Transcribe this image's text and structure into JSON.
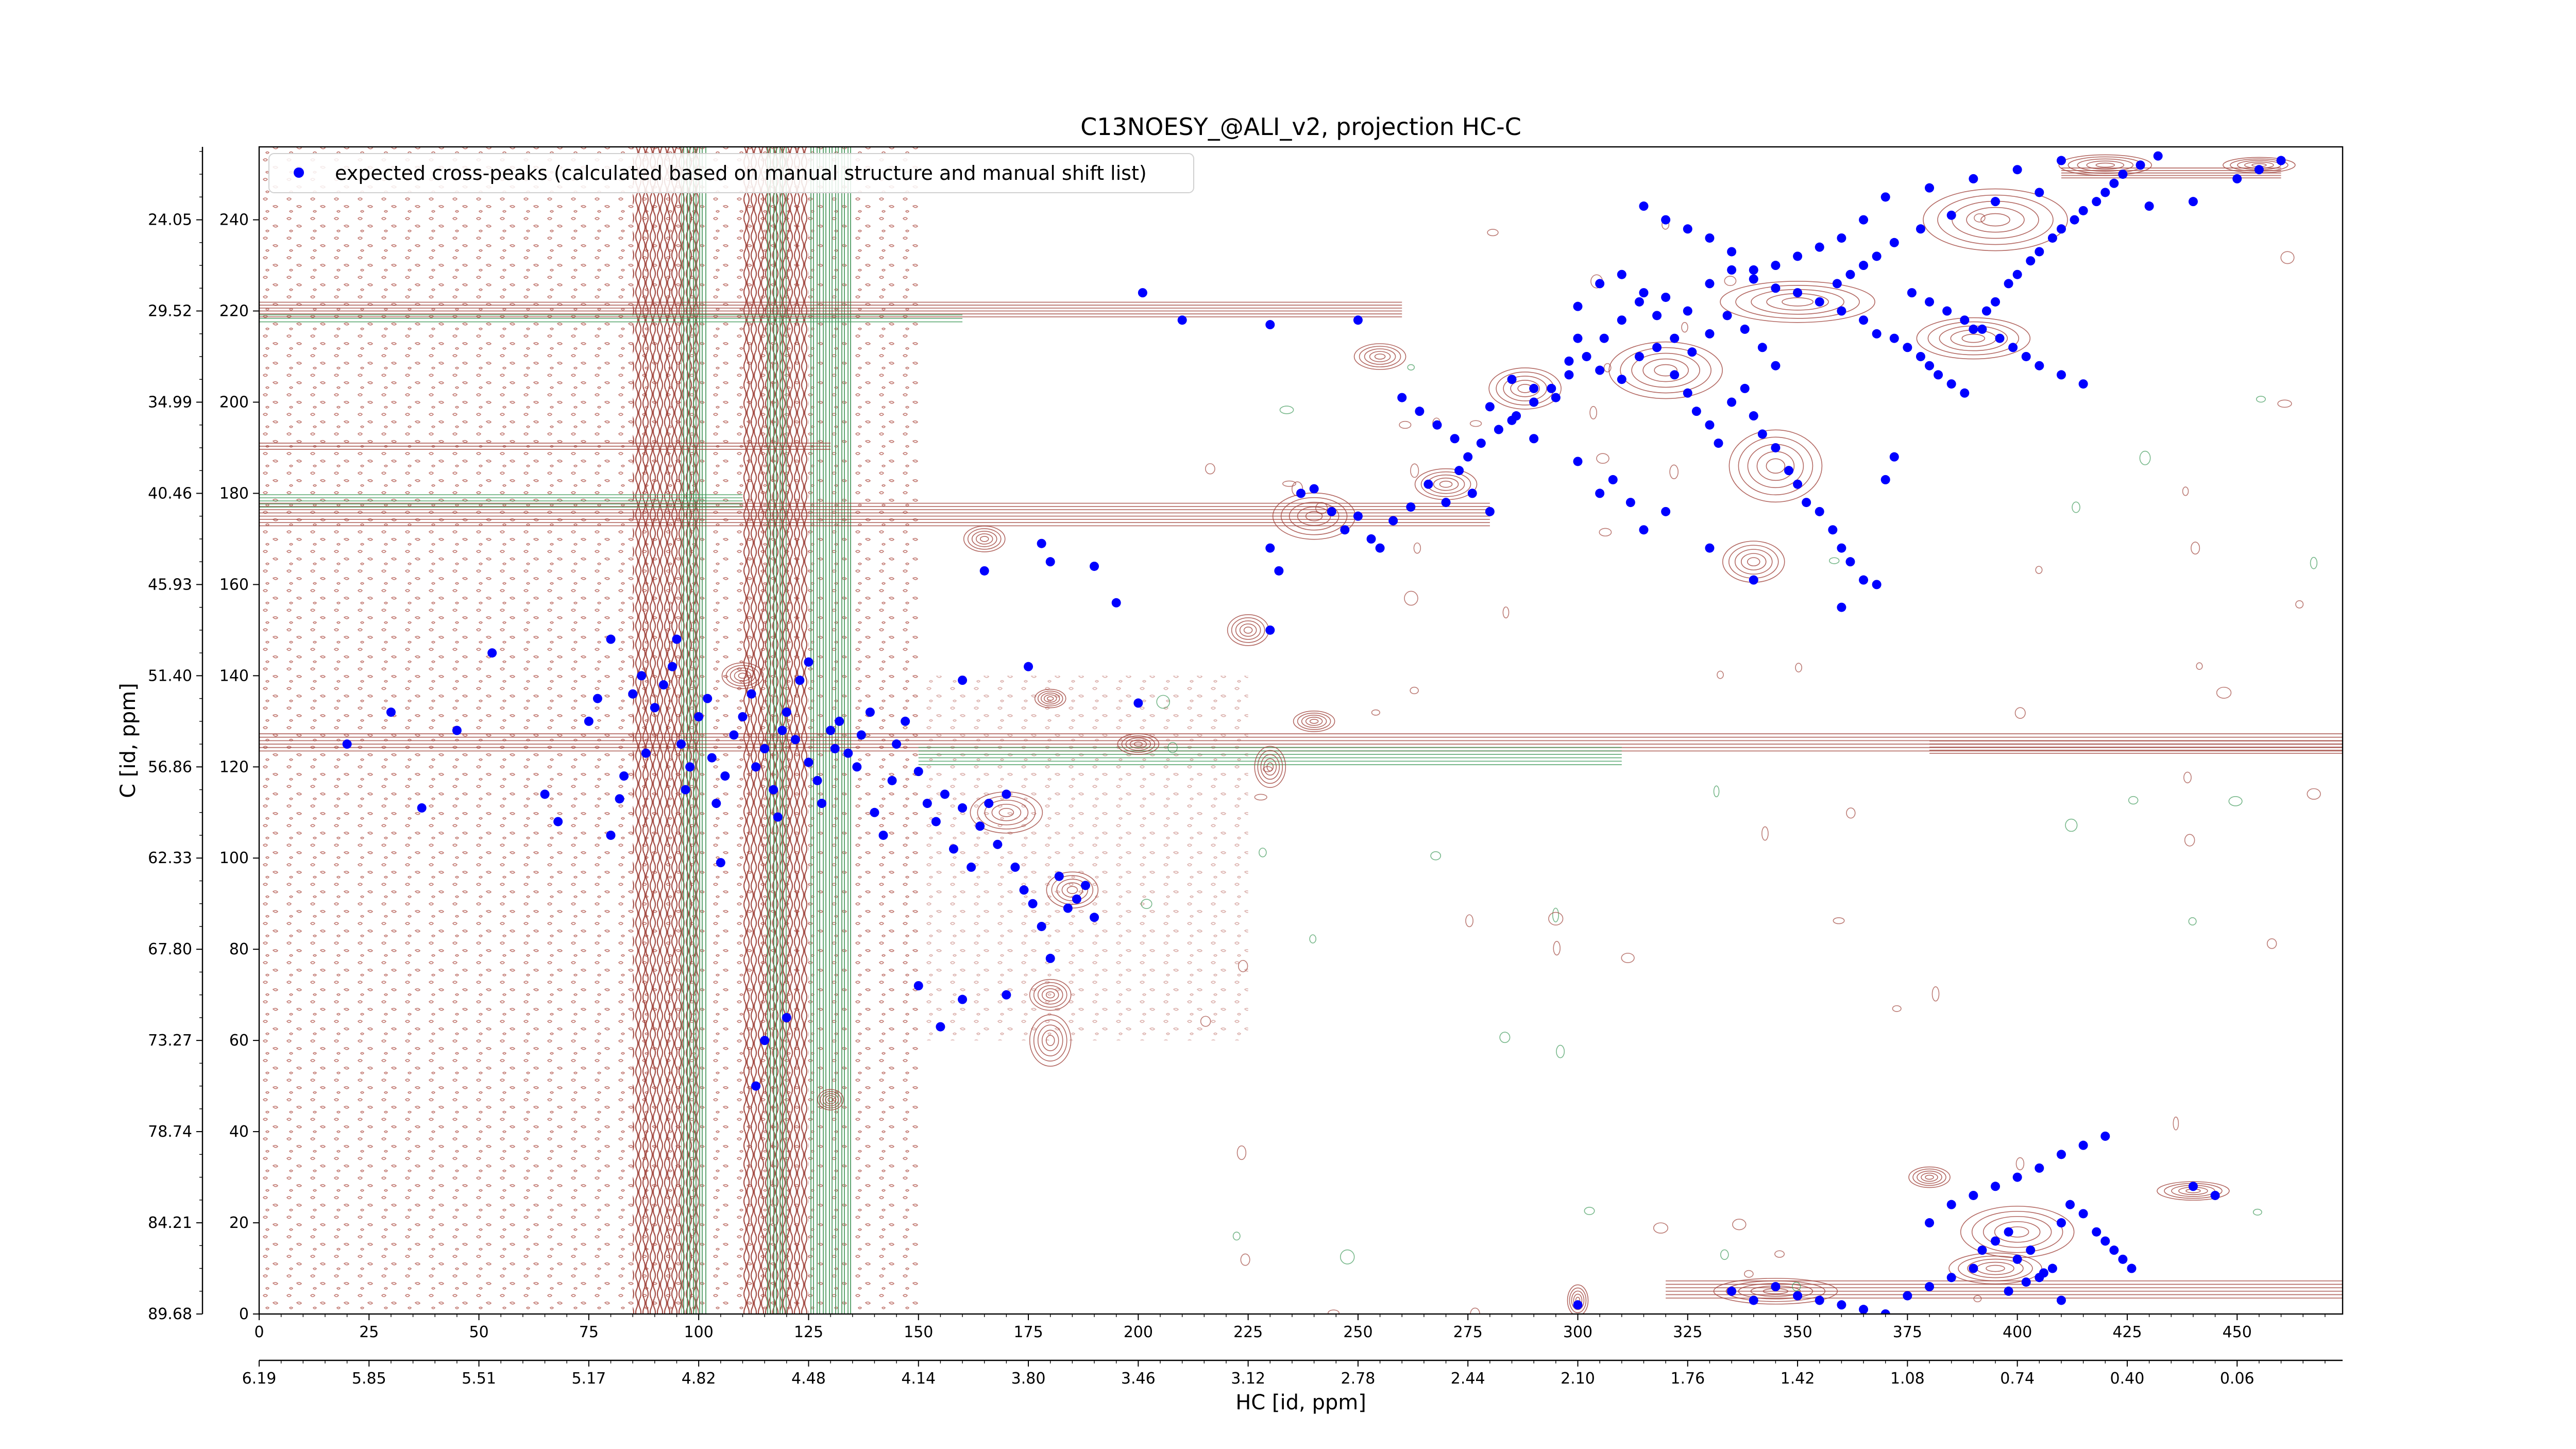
{
  "chart_data": {
    "type": "scatter",
    "title": "C13NOESY_@ALI_v2, projection HC-C",
    "xlabel": "HC [id, ppm]",
    "ylabel": "C [id, ppm]",
    "xlim": [
      0,
      474
    ],
    "ylim": [
      0,
      256
    ],
    "x_ticks": [
      0,
      25,
      50,
      75,
      100,
      125,
      150,
      175,
      200,
      225,
      250,
      275,
      300,
      325,
      350,
      375,
      400,
      425,
      450
    ],
    "x_ppm_ticks": [
      "6.19",
      "5.85",
      "5.51",
      "5.17",
      "4.82",
      "4.48",
      "4.14",
      "3.80",
      "3.46",
      "3.12",
      "2.78",
      "2.44",
      "2.10",
      "1.76",
      "1.42",
      "1.08",
      "0.74",
      "0.40",
      "0.06"
    ],
    "y_ticks": [
      0,
      20,
      40,
      60,
      80,
      100,
      120,
      140,
      160,
      180,
      200,
      220,
      240
    ],
    "y_ppm_ticks": [
      "89.68",
      "84.21",
      "78.74",
      "73.27",
      "67.80",
      "62.33",
      "56.86",
      "51.40",
      "45.93",
      "40.46",
      "34.99",
      "29.52",
      "24.05"
    ],
    "legend": {
      "placement": "top-left",
      "entries": [
        "expected cross-peaks (calculated based on manual structure and manual shift list)"
      ]
    },
    "colors": {
      "positive_contour": "#a0443c",
      "negative_contour": "#3f9a5a",
      "marker": "#0000ff"
    },
    "series": [
      {
        "name": "expected cross-peaks (calculated based on manual structure and manual shift list)",
        "points": [
          [
            20,
            125
          ],
          [
            30,
            132
          ],
          [
            37,
            111
          ],
          [
            45,
            128
          ],
          [
            53,
            145
          ],
          [
            65,
            114
          ],
          [
            68,
            108
          ],
          [
            75,
            130
          ],
          [
            77,
            135
          ],
          [
            80,
            148
          ],
          [
            80,
            105
          ],
          [
            82,
            113
          ],
          [
            83,
            118
          ],
          [
            85,
            136
          ],
          [
            87,
            140
          ],
          [
            88,
            123
          ],
          [
            90,
            133
          ],
          [
            92,
            138
          ],
          [
            94,
            142
          ],
          [
            95,
            148
          ],
          [
            96,
            125
          ],
          [
            97,
            115
          ],
          [
            98,
            120
          ],
          [
            100,
            131
          ],
          [
            102,
            135
          ],
          [
            103,
            122
          ],
          [
            104,
            112
          ],
          [
            105,
            99
          ],
          [
            106,
            118
          ],
          [
            108,
            127
          ],
          [
            110,
            131
          ],
          [
            112,
            136
          ],
          [
            113,
            120
          ],
          [
            115,
            124
          ],
          [
            117,
            115
          ],
          [
            118,
            109
          ],
          [
            119,
            128
          ],
          [
            120,
            132
          ],
          [
            122,
            126
          ],
          [
            123,
            139
          ],
          [
            125,
            143
          ],
          [
            125,
            121
          ],
          [
            127,
            117
          ],
          [
            128,
            112
          ],
          [
            130,
            128
          ],
          [
            131,
            124
          ],
          [
            132,
            130
          ],
          [
            134,
            123
          ],
          [
            136,
            120
          ],
          [
            137,
            127
          ],
          [
            139,
            132
          ],
          [
            140,
            110
          ],
          [
            142,
            105
          ],
          [
            144,
            117
          ],
          [
            145,
            125
          ],
          [
            147,
            130
          ],
          [
            150,
            119
          ],
          [
            152,
            112
          ],
          [
            154,
            108
          ],
          [
            156,
            114
          ],
          [
            158,
            102
          ],
          [
            160,
            111
          ],
          [
            162,
            98
          ],
          [
            164,
            107
          ],
          [
            166,
            112
          ],
          [
            168,
            103
          ],
          [
            170,
            114
          ],
          [
            172,
            98
          ],
          [
            174,
            93
          ],
          [
            176,
            90
          ],
          [
            178,
            85
          ],
          [
            180,
            78
          ],
          [
            182,
            96
          ],
          [
            184,
            89
          ],
          [
            186,
            91
          ],
          [
            188,
            94
          ],
          [
            190,
            87
          ],
          [
            150,
            72
          ],
          [
            155,
            63
          ],
          [
            160,
            69
          ],
          [
            170,
            70
          ],
          [
            120,
            65
          ],
          [
            115,
            60
          ],
          [
            113,
            50
          ],
          [
            160,
            139
          ],
          [
            165,
            163
          ],
          [
            175,
            142
          ],
          [
            178,
            169
          ],
          [
            180,
            165
          ],
          [
            190,
            164
          ],
          [
            195,
            156
          ],
          [
            200,
            134
          ],
          [
            201,
            224
          ],
          [
            210,
            218
          ],
          [
            230,
            168
          ],
          [
            232,
            163
          ],
          [
            230,
            150
          ],
          [
            237,
            180
          ],
          [
            240,
            181
          ],
          [
            244,
            176
          ],
          [
            247,
            172
          ],
          [
            250,
            175
          ],
          [
            253,
            170
          ],
          [
            255,
            168
          ],
          [
            258,
            174
          ],
          [
            262,
            177
          ],
          [
            266,
            182
          ],
          [
            270,
            178
          ],
          [
            273,
            185
          ],
          [
            276,
            180
          ],
          [
            280,
            176
          ],
          [
            230,
            217
          ],
          [
            250,
            218
          ],
          [
            285,
            205
          ],
          [
            290,
            203
          ],
          [
            295,
            201
          ],
          [
            298,
            209
          ],
          [
            300,
            214
          ],
          [
            305,
            207
          ],
          [
            310,
            205
          ],
          [
            314,
            210
          ],
          [
            318,
            212
          ],
          [
            322,
            206
          ],
          [
            325,
            202
          ],
          [
            327,
            198
          ],
          [
            330,
            195
          ],
          [
            332,
            191
          ],
          [
            335,
            200
          ],
          [
            338,
            203
          ],
          [
            340,
            197
          ],
          [
            342,
            193
          ],
          [
            345,
            190
          ],
          [
            348,
            185
          ],
          [
            350,
            182
          ],
          [
            352,
            178
          ],
          [
            355,
            176
          ],
          [
            358,
            172
          ],
          [
            360,
            168
          ],
          [
            362,
            165
          ],
          [
            365,
            161
          ],
          [
            368,
            160
          ],
          [
            370,
            183
          ],
          [
            372,
            188
          ],
          [
            360,
            155
          ],
          [
            340,
            161
          ],
          [
            330,
            168
          ],
          [
            320,
            176
          ],
          [
            315,
            172
          ],
          [
            312,
            178
          ],
          [
            308,
            183
          ],
          [
            305,
            180
          ],
          [
            300,
            187
          ],
          [
            290,
            192
          ],
          [
            285,
            196
          ],
          [
            280,
            199
          ],
          [
            300,
            221
          ],
          [
            305,
            226
          ],
          [
            310,
            228
          ],
          [
            315,
            224
          ],
          [
            320,
            223
          ],
          [
            325,
            220
          ],
          [
            330,
            226
          ],
          [
            335,
            229
          ],
          [
            340,
            227
          ],
          [
            345,
            225
          ],
          [
            350,
            224
          ],
          [
            355,
            222
          ],
          [
            360,
            220
          ],
          [
            365,
            218
          ],
          [
            368,
            215
          ],
          [
            372,
            214
          ],
          [
            375,
            212
          ],
          [
            378,
            210
          ],
          [
            380,
            208
          ],
          [
            382,
            206
          ],
          [
            385,
            204
          ],
          [
            388,
            202
          ],
          [
            390,
            216
          ],
          [
            393,
            220
          ],
          [
            395,
            222
          ],
          [
            398,
            226
          ],
          [
            400,
            228
          ],
          [
            403,
            231
          ],
          [
            405,
            233
          ],
          [
            408,
            236
          ],
          [
            410,
            238
          ],
          [
            413,
            240
          ],
          [
            415,
            242
          ],
          [
            418,
            244
          ],
          [
            420,
            246
          ],
          [
            422,
            248
          ],
          [
            424,
            250
          ],
          [
            428,
            252
          ],
          [
            432,
            254
          ],
          [
            410,
            253
          ],
          [
            400,
            251
          ],
          [
            390,
            249
          ],
          [
            380,
            247
          ],
          [
            370,
            245
          ],
          [
            365,
            240
          ],
          [
            360,
            236
          ],
          [
            355,
            234
          ],
          [
            350,
            232
          ],
          [
            345,
            230
          ],
          [
            340,
            229
          ],
          [
            335,
            233
          ],
          [
            330,
            236
          ],
          [
            325,
            238
          ],
          [
            320,
            240
          ],
          [
            315,
            243
          ],
          [
            440,
            244
          ],
          [
            450,
            249
          ],
          [
            455,
            251
          ],
          [
            460,
            253
          ],
          [
            430,
            243
          ],
          [
            405,
            246
          ],
          [
            395,
            244
          ],
          [
            385,
            241
          ],
          [
            378,
            238
          ],
          [
            372,
            235
          ],
          [
            368,
            232
          ],
          [
            365,
            230
          ],
          [
            362,
            228
          ],
          [
            359,
            226
          ],
          [
            376,
            224
          ],
          [
            380,
            222
          ],
          [
            384,
            220
          ],
          [
            388,
            218
          ],
          [
            392,
            216
          ],
          [
            396,
            214
          ],
          [
            399,
            212
          ],
          [
            402,
            210
          ],
          [
            405,
            208
          ],
          [
            410,
            206
          ],
          [
            415,
            204
          ],
          [
            345,
            208
          ],
          [
            342,
            212
          ],
          [
            338,
            216
          ],
          [
            334,
            219
          ],
          [
            330,
            215
          ],
          [
            326,
            211
          ],
          [
            322,
            214
          ],
          [
            318,
            219
          ],
          [
            314,
            222
          ],
          [
            310,
            218
          ],
          [
            306,
            214
          ],
          [
            302,
            210
          ],
          [
            298,
            206
          ],
          [
            294,
            203
          ],
          [
            290,
            200
          ],
          [
            286,
            197
          ],
          [
            282,
            194
          ],
          [
            278,
            191
          ],
          [
            275,
            188
          ],
          [
            272,
            192
          ],
          [
            268,
            195
          ],
          [
            264,
            198
          ],
          [
            260,
            201
          ],
          [
            300,
            2
          ],
          [
            335,
            5
          ],
          [
            340,
            3
          ],
          [
            345,
            6
          ],
          [
            350,
            4
          ],
          [
            355,
            3
          ],
          [
            360,
            2
          ],
          [
            365,
            1
          ],
          [
            370,
            0
          ],
          [
            375,
            4
          ],
          [
            380,
            6
          ],
          [
            385,
            8
          ],
          [
            390,
            10
          ],
          [
            392,
            14
          ],
          [
            395,
            16
          ],
          [
            398,
            18
          ],
          [
            400,
            12
          ],
          [
            403,
            14
          ],
          [
            405,
            8
          ],
          [
            408,
            10
          ],
          [
            410,
            20
          ],
          [
            412,
            24
          ],
          [
            415,
            22
          ],
          [
            418,
            18
          ],
          [
            420,
            16
          ],
          [
            422,
            14
          ],
          [
            424,
            12
          ],
          [
            426,
            10
          ],
          [
            380,
            20
          ],
          [
            385,
            24
          ],
          [
            390,
            26
          ],
          [
            395,
            28
          ],
          [
            400,
            30
          ],
          [
            405,
            32
          ],
          [
            410,
            35
          ],
          [
            415,
            37
          ],
          [
            420,
            39
          ],
          [
            440,
            28
          ],
          [
            445,
            26
          ],
          [
            398,
            5
          ],
          [
            402,
            7
          ],
          [
            406,
            9
          ],
          [
            410,
            3
          ]
        ]
      }
    ]
  }
}
